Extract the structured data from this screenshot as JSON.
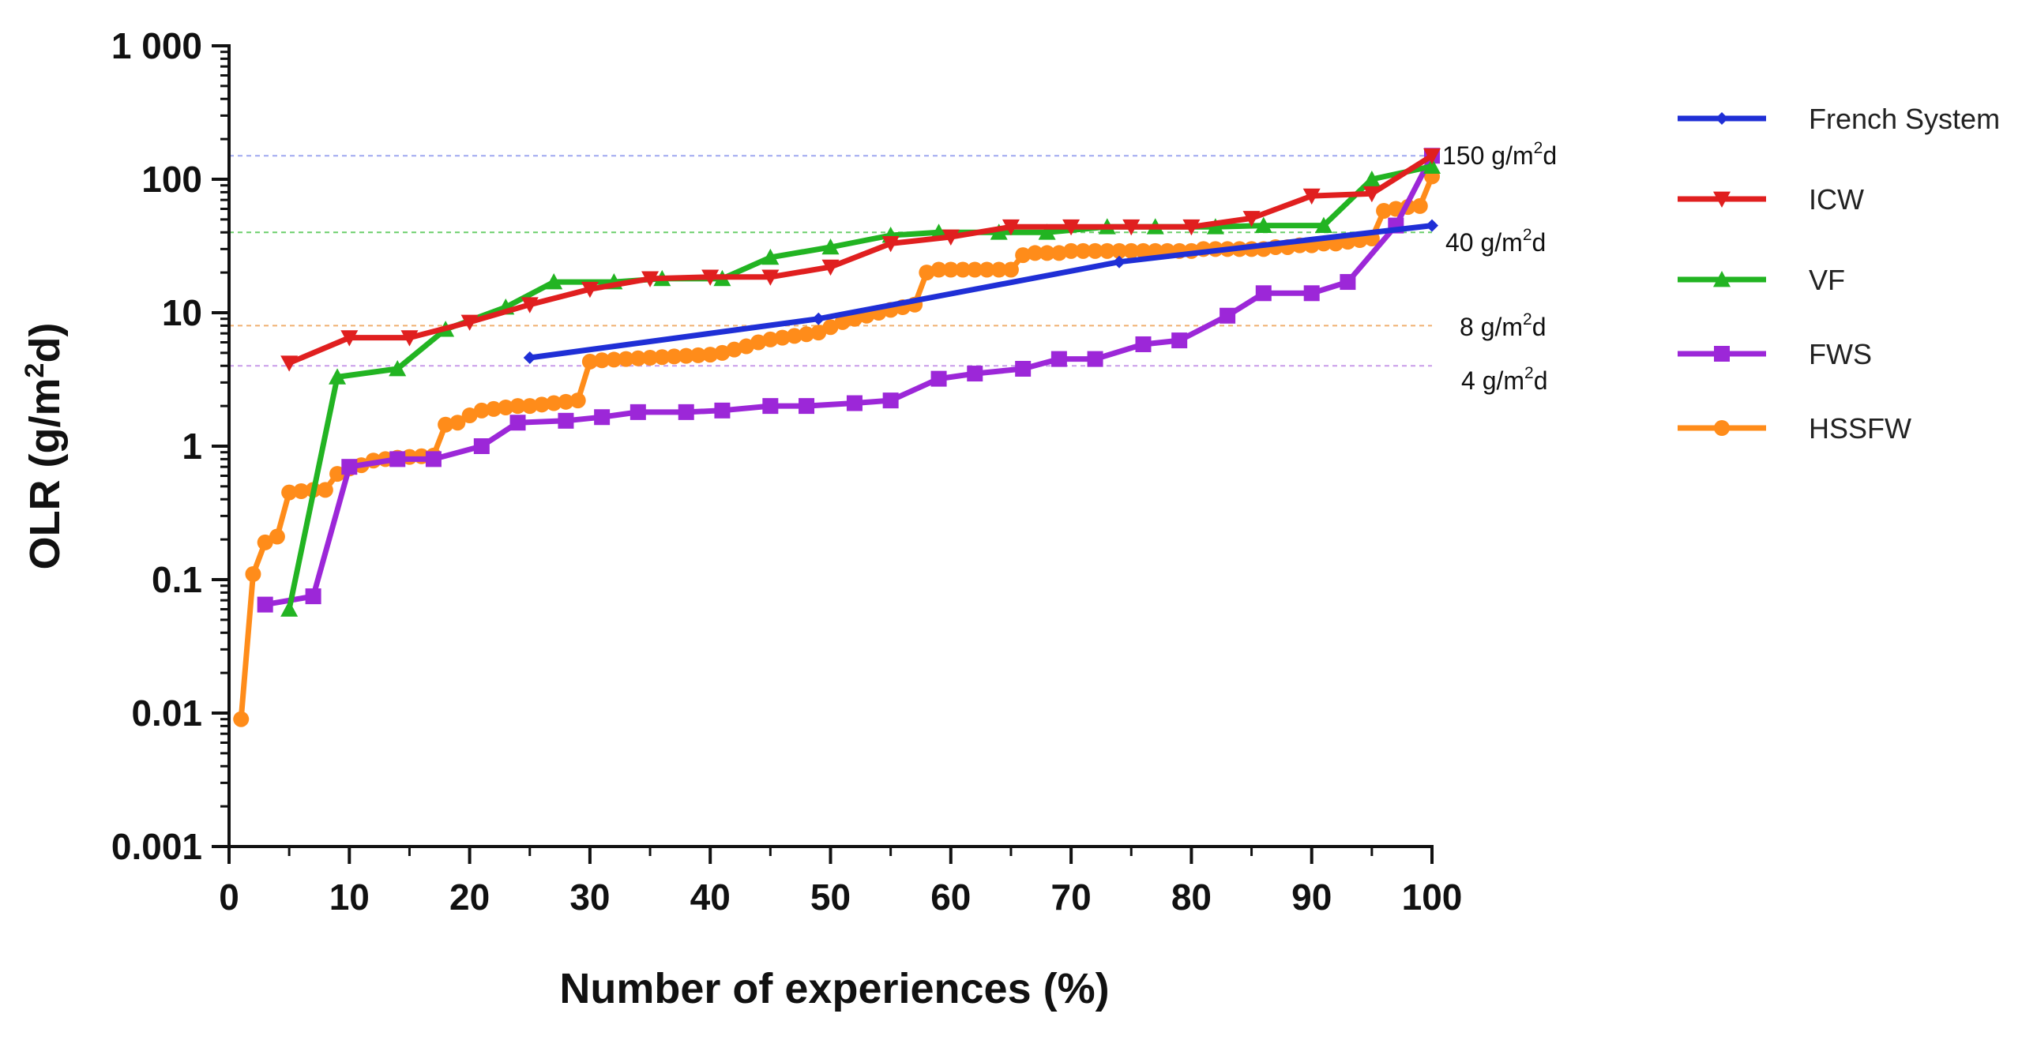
{
  "chart_data": {
    "type": "line",
    "title": "",
    "xlabel": "Number of experiences (%)",
    "ylabel": {
      "pre": "OLR (g/m",
      "sup": "2",
      "post": "d)"
    },
    "xlim": [
      0,
      100
    ],
    "ylim": [
      0.001,
      1000
    ],
    "yscale": "log",
    "x_ticks": [
      0,
      10,
      20,
      30,
      40,
      50,
      60,
      70,
      80,
      90,
      100
    ],
    "y_ticks": [
      {
        "value": 1000,
        "label": "1 000"
      },
      {
        "value": 100,
        "label": "100"
      },
      {
        "value": 10,
        "label": "10"
      },
      {
        "value": 1,
        "label": "1"
      },
      {
        "value": 0.1,
        "label": "0.1"
      },
      {
        "value": 0.01,
        "label": "0.01"
      },
      {
        "value": 0.001,
        "label": "0.001"
      }
    ],
    "legend_position": "right",
    "reference_lines": [
      {
        "value": 150,
        "pre": "150 g/m",
        "sup": "2",
        "post": "d",
        "color": "#9fa8f0"
      },
      {
        "value": 40,
        "pre": "40 g/m",
        "sup": "2",
        "post": "d",
        "color": "#6ccf6c"
      },
      {
        "value": 8,
        "pre": "8 g/m",
        "sup": "2",
        "post": "d",
        "color": "#f0b070"
      },
      {
        "value": 4,
        "pre": "4 g/m",
        "sup": "2",
        "post": "d",
        "color": "#c89be8"
      }
    ],
    "series": [
      {
        "name": "French System",
        "color": "#1f2fd6",
        "marker": "diamond",
        "x": [
          25,
          49,
          74,
          100
        ],
        "y": [
          4.6,
          9,
          24,
          45
        ]
      },
      {
        "name": "ICW",
        "color": "#e01f1f",
        "marker": "triangle-down",
        "x": [
          5,
          10,
          15,
          20,
          25,
          30,
          35,
          40,
          45,
          50,
          55,
          60,
          65,
          70,
          75,
          80,
          85,
          90,
          95,
          100
        ],
        "y": [
          4.2,
          6.5,
          6.5,
          8.5,
          11.5,
          15,
          18,
          18.5,
          18.5,
          22,
          33,
          37,
          44,
          44,
          44,
          44,
          51,
          75,
          78,
          150
        ]
      },
      {
        "name": "VF",
        "color": "#22b422",
        "marker": "triangle-up",
        "x": [
          5,
          9,
          14,
          18,
          23,
          27,
          32,
          36,
          41,
          45,
          50,
          55,
          59,
          64,
          68,
          73,
          77,
          82,
          86,
          91,
          95,
          100
        ],
        "y": [
          0.06,
          3.3,
          3.8,
          7.5,
          11,
          17,
          17,
          18,
          18,
          26,
          31,
          38,
          40,
          40,
          40,
          44,
          44,
          44,
          45,
          45,
          100,
          125
        ]
      },
      {
        "name": "FWS",
        "color": "#9c27d8",
        "marker": "square",
        "x": [
          3,
          7,
          10,
          14,
          17,
          21,
          24,
          28,
          31,
          34,
          38,
          41,
          45,
          48,
          52,
          55,
          59,
          62,
          66,
          69,
          72,
          76,
          79,
          83,
          86,
          90,
          93,
          97,
          100
        ],
        "y": [
          0.065,
          0.075,
          0.7,
          0.8,
          0.8,
          1.0,
          1.5,
          1.55,
          1.65,
          1.8,
          1.8,
          1.85,
          2.0,
          2.0,
          2.1,
          2.2,
          3.2,
          3.5,
          3.8,
          4.5,
          4.5,
          5.8,
          6.2,
          9.5,
          14,
          14,
          17,
          45,
          150
        ]
      },
      {
        "name": "HSSFW",
        "color": "#ff8c1a",
        "marker": "circle",
        "x": [
          1,
          2,
          3,
          4,
          5,
          6,
          7,
          8,
          9,
          10,
          11,
          12,
          13,
          14,
          15,
          16,
          17,
          18,
          19,
          20,
          21,
          22,
          23,
          24,
          25,
          26,
          27,
          28,
          29,
          30,
          31,
          32,
          33,
          34,
          35,
          36,
          37,
          38,
          39,
          40,
          41,
          42,
          43,
          44,
          45,
          46,
          47,
          48,
          49,
          50,
          51,
          52,
          53,
          54,
          55,
          56,
          57,
          58,
          59,
          60,
          61,
          62,
          63,
          64,
          65,
          66,
          67,
          68,
          69,
          70,
          71,
          72,
          73,
          74,
          75,
          76,
          77,
          78,
          79,
          80,
          81,
          82,
          83,
          84,
          85,
          86,
          87,
          88,
          89,
          90,
          91,
          92,
          93,
          94,
          95,
          96,
          97,
          98,
          99,
          100
        ],
        "y": [
          0.009,
          0.11,
          0.19,
          0.21,
          0.45,
          0.46,
          0.47,
          0.47,
          0.62,
          0.68,
          0.72,
          0.78,
          0.8,
          0.82,
          0.83,
          0.84,
          0.85,
          1.45,
          1.5,
          1.7,
          1.85,
          1.9,
          1.95,
          2.0,
          2.0,
          2.05,
          2.1,
          2.15,
          2.2,
          4.3,
          4.4,
          4.45,
          4.5,
          4.55,
          4.6,
          4.65,
          4.7,
          4.75,
          4.8,
          4.85,
          5.0,
          5.3,
          5.6,
          6.0,
          6.3,
          6.5,
          6.7,
          6.9,
          7.1,
          7.8,
          8.5,
          9.0,
          9.5,
          10,
          10.5,
          11,
          11.5,
          20,
          21,
          21,
          21,
          21,
          21,
          21,
          21,
          27,
          28,
          28,
          28,
          29,
          29,
          29,
          29,
          29,
          29,
          29,
          29,
          29,
          29,
          29,
          30,
          30,
          30,
          30,
          30,
          30,
          31,
          31,
          32,
          32,
          33,
          33,
          34,
          35,
          36,
          58,
          60,
          62,
          63,
          105
        ]
      }
    ]
  }
}
